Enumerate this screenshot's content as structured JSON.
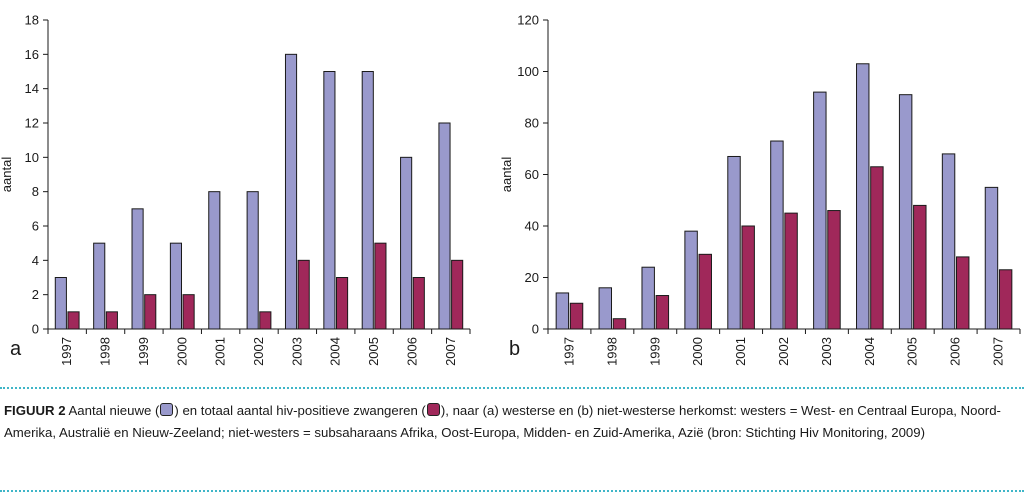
{
  "colors": {
    "new": "#9999cc",
    "total": "#a0285a",
    "axis": "#1a1a1a",
    "rule": "#3fb6c8"
  },
  "chart_data": [
    {
      "type": "bar",
      "panel": "a",
      "title": "",
      "xlabel": "",
      "ylabel": "aantal",
      "categories": [
        "1997",
        "1998",
        "1999",
        "2000",
        "2001",
        "2002",
        "2003",
        "2004",
        "2005",
        "2006",
        "2007"
      ],
      "series": [
        {
          "name": "nieuwe",
          "values": [
            3,
            5,
            7,
            5,
            8,
            8,
            16,
            15,
            15,
            10,
            12
          ]
        },
        {
          "name": "totaal",
          "values": [
            1,
            1,
            2,
            2,
            0,
            1,
            4,
            3,
            5,
            3,
            4
          ]
        }
      ],
      "ylim": [
        0,
        18
      ],
      "yticks": [
        0,
        2,
        4,
        6,
        8,
        10,
        12,
        14,
        16,
        18
      ],
      "grid": false
    },
    {
      "type": "bar",
      "panel": "b",
      "title": "",
      "xlabel": "",
      "ylabel": "aantal",
      "categories": [
        "1997",
        "1998",
        "1999",
        "2000",
        "2001",
        "2002",
        "2003",
        "2004",
        "2005",
        "2006",
        "2007"
      ],
      "series": [
        {
          "name": "nieuwe",
          "values": [
            14,
            16,
            24,
            38,
            67,
            73,
            92,
            103,
            91,
            68,
            55
          ]
        },
        {
          "name": "totaal",
          "values": [
            10,
            4,
            13,
            29,
            40,
            45,
            46,
            63,
            48,
            28,
            23
          ]
        }
      ],
      "ylim": [
        0,
        120
      ],
      "yticks": [
        0,
        20,
        40,
        60,
        80,
        100,
        120
      ],
      "grid": false
    }
  ],
  "caption": {
    "label": "FIGUUR 2",
    "text_1": " Aantal nieuwe (",
    "text_2": ") en totaal aantal hiv-positieve zwangeren (",
    "text_3": "), naar (a) westerse en (b) niet-westerse herkomst: westers = West- en Centraal Europa, Noord-Amerika, Australië en Nieuw-Zeeland; niet-westers = subsaharaans Afrika, Oost-Europa, Midden- en Zuid-Amerika, Azië (bron: Stichting Hiv Monitoring, 2009)"
  }
}
